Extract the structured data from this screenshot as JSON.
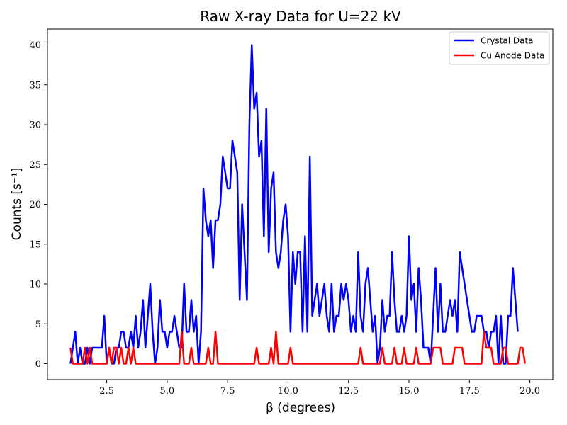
{
  "chart_data": {
    "type": "line",
    "title": "Raw X-ray Data for U=22 kV",
    "xlabel": "β (degrees)",
    "ylabel": "Counts [s⁻¹]",
    "xlim": [
      0.05,
      20.95
    ],
    "ylim": [
      -2,
      42
    ],
    "xticks": [
      2.5,
      5.0,
      7.5,
      10.0,
      12.5,
      15.0,
      17.5,
      20.0
    ],
    "xtick_labels": [
      "2.5",
      "5.0",
      "7.5",
      "10.0",
      "12.5",
      "15.0",
      "17.5",
      "20.0"
    ],
    "yticks": [
      0,
      5,
      10,
      15,
      20,
      25,
      30,
      35,
      40
    ],
    "ytick_labels": [
      "0",
      "5",
      "10",
      "15",
      "20",
      "25",
      "30",
      "35",
      "40"
    ],
    "grid": false,
    "legend_position": "top-right",
    "x_start": 1.0,
    "x_step": 0.1,
    "series": [
      {
        "name": "Crystal Data",
        "color": "#0000ff",
        "values": [
          0,
          2,
          4,
          0,
          2,
          0,
          0,
          2,
          0,
          2,
          2,
          2,
          2,
          2,
          6,
          0,
          2,
          0,
          0,
          2,
          2,
          4,
          4,
          2,
          2,
          4,
          2,
          6,
          2,
          4,
          8,
          2,
          6,
          10,
          4,
          0,
          2,
          8,
          4,
          4,
          2,
          4,
          4,
          6,
          4,
          2,
          2,
          10,
          4,
          4,
          8,
          4,
          6,
          0,
          4,
          22,
          18,
          16,
          18,
          12,
          18,
          18,
          20,
          26,
          24,
          22,
          22,
          28,
          26,
          24,
          8,
          20,
          14,
          8,
          30,
          40,
          32,
          34,
          26,
          28,
          16,
          32,
          14,
          22,
          24,
          14,
          12,
          14,
          18,
          20,
          16,
          4,
          14,
          10,
          14,
          14,
          4,
          16,
          4,
          26,
          6,
          8,
          10,
          6,
          8,
          10,
          6,
          4,
          10,
          4,
          6,
          6,
          10,
          8,
          10,
          8,
          4,
          6,
          4,
          14,
          6,
          4,
          10,
          12,
          8,
          4,
          6,
          0,
          2,
          8,
          4,
          6,
          6,
          14,
          8,
          4,
          4,
          6,
          4,
          6,
          16,
          8,
          10,
          4,
          12,
          8,
          2,
          2,
          2,
          0,
          6,
          12,
          4,
          10,
          4,
          4,
          6,
          8,
          6,
          8,
          4,
          14,
          12,
          10,
          8,
          6,
          4,
          4,
          6,
          6,
          6,
          4,
          4,
          2,
          4,
          4,
          6,
          0,
          6,
          0,
          0,
          6,
          6,
          12,
          8,
          4
        ]
      },
      {
        "name": "Cu Anode Data",
        "color": "#ff0000",
        "values": [
          2,
          0,
          0,
          0,
          0,
          0,
          2,
          0,
          2,
          0,
          0,
          0,
          0,
          0,
          0,
          0,
          2,
          0,
          2,
          2,
          0,
          2,
          0,
          0,
          2,
          0,
          2,
          0,
          0,
          0,
          0,
          0,
          0,
          0,
          0,
          0,
          0,
          0,
          0,
          0,
          0,
          0,
          0,
          0,
          0,
          0,
          4,
          0,
          0,
          0,
          2,
          0,
          0,
          0,
          0,
          0,
          0,
          2,
          0,
          0,
          4,
          0,
          0,
          0,
          0,
          0,
          0,
          0,
          0,
          0,
          0,
          0,
          0,
          0,
          0,
          0,
          0,
          2,
          0,
          0,
          0,
          0,
          0,
          2,
          0,
          4,
          0,
          0,
          0,
          0,
          0,
          2,
          0,
          0,
          0,
          0,
          0,
          0,
          0,
          0,
          0,
          0,
          0,
          0,
          0,
          0,
          0,
          0,
          0,
          0,
          0,
          0,
          0,
          0,
          0,
          0,
          0,
          0,
          0,
          0,
          2,
          0,
          0,
          0,
          0,
          0,
          0,
          0,
          0,
          2,
          0,
          0,
          0,
          0,
          2,
          0,
          0,
          0,
          2,
          0,
          0,
          0,
          0,
          2,
          0,
          0,
          0,
          0,
          0,
          0,
          2,
          2,
          2,
          2,
          0,
          0,
          0,
          0,
          0,
          2,
          2,
          2,
          2,
          0,
          0,
          0,
          0,
          0,
          0,
          0,
          0,
          4,
          2,
          2,
          2,
          0,
          0,
          0,
          0,
          2,
          2,
          0,
          0,
          0,
          0,
          0,
          2,
          2,
          0
        ]
      }
    ]
  }
}
